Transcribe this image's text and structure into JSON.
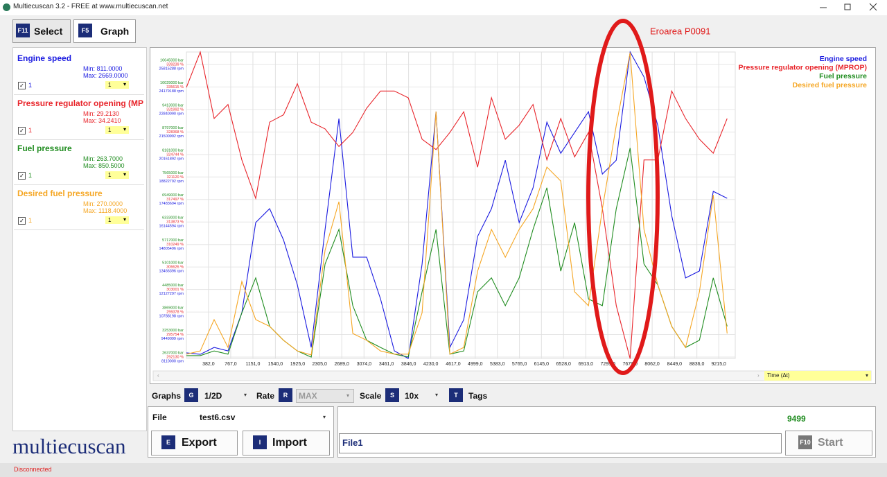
{
  "window": {
    "title": "Multiecuscan 3.2 - FREE at www.multiecuscan.net"
  },
  "tabs": [
    {
      "key": "F11",
      "label": "Select"
    },
    {
      "key": "F5",
      "label": "Graph"
    }
  ],
  "sidebar": [
    {
      "min": "Min: 811.0000",
      "max": "Max: 2669.0000",
      "checkbox": "1",
      "dropdown": "1"
    },
    {
      "min": "Min: 29.2130",
      "max": "Max: 34.2410",
      "checkbox": "1",
      "dropdown": "1"
    },
    {
      "min": "Min: 263.7000",
      "max": "Max: 850.5000",
      "checkbox": "1",
      "dropdown": "1"
    },
    {
      "min": "Min: 270.0000",
      "max": "Max: 1118.4000",
      "checkbox": "1",
      "dropdown": "1"
    }
  ],
  "chart_data": {
    "type": "line",
    "annotation": "Eroarea P0091",
    "x_axis_label": "Time (Δt)",
    "xlim": [
      0,
      9500
    ],
    "xticks": [
      {
        "value": 382,
        "label": "382,0"
      },
      {
        "value": 767,
        "label": "767,0"
      },
      {
        "value": 1151,
        "label": "1151,0"
      },
      {
        "value": 1540,
        "label": "1540,0"
      },
      {
        "value": 1925,
        "label": "1925,0"
      },
      {
        "value": 2305,
        "label": "2305,0"
      },
      {
        "value": 2689,
        "label": "2689,0"
      },
      {
        "value": 3074,
        "label": "3074,0"
      },
      {
        "value": 3461,
        "label": "3461,0"
      },
      {
        "value": 3846,
        "label": "3846,0"
      },
      {
        "value": 4230,
        "label": "4230,0"
      },
      {
        "value": 4617,
        "label": "4617,0"
      },
      {
        "value": 4999,
        "label": "4999,0"
      },
      {
        "value": 5383,
        "label": "5383,0"
      },
      {
        "value": 5765,
        "label": "5765,0"
      },
      {
        "value": 6145,
        "label": "6145,0"
      },
      {
        "value": 6528,
        "label": "6528,0"
      },
      {
        "value": 6913,
        "label": "6913,0"
      },
      {
        "value": 7295,
        "label": "7295,0"
      },
      {
        "value": 7679,
        "label": "7679,0"
      },
      {
        "value": 8062,
        "label": "8062,0"
      },
      {
        "value": 8449,
        "label": "8449,0"
      },
      {
        "value": 8836,
        "label": "8836,0"
      },
      {
        "value": 9215,
        "label": "9215,0"
      }
    ],
    "y_tick_labels": [
      [
        "10645000 bar",
        "339239 %",
        "25815288 rpm"
      ],
      [
        "10029000 bar",
        "335615 %",
        "24179188 rpm"
      ],
      [
        "9413000 bar",
        "331992 %",
        "22840090 rpm"
      ],
      [
        "8797000 bar",
        "328368 %",
        "21500992 rpm"
      ],
      [
        "8181000 bar",
        "324744 %",
        "20161892 rpm"
      ],
      [
        "7565000 bar",
        "321120 %",
        "18822792 rpm"
      ],
      [
        "6949000 bar",
        "317497 %",
        "17483694 rpm"
      ],
      [
        "6333000 bar",
        "313873 %",
        "16144594 rpm"
      ],
      [
        "5717000 bar",
        "310249 %",
        "14805496 rpm"
      ],
      [
        "5101000 bar",
        "306626 %",
        "13466396 rpm"
      ],
      [
        "4485000 bar",
        "303001 %",
        "12127297 rpm"
      ],
      [
        "3869000 bar",
        "299378 %",
        "10788198 rpm"
      ],
      [
        "3253000 bar",
        "295754 %",
        "9449099 rpm"
      ],
      [
        "2637000 bar",
        "292130 %",
        "8110000 rpm"
      ]
    ],
    "x": [
      0,
      240,
      480,
      720,
      960,
      1200,
      1440,
      1680,
      1920,
      2160,
      2400,
      2640,
      2880,
      3120,
      3360,
      3600,
      3840,
      4080,
      4320,
      4560,
      4800,
      5040,
      5280,
      5520,
      5760,
      6000,
      6240,
      6480,
      6720,
      6960,
      7200,
      7440,
      7680,
      7920,
      8160,
      8400,
      8640,
      8880,
      9120,
      9360
    ],
    "series": [
      {
        "name": "Engine speed",
        "color": "#1a1ae0",
        "ylim": [
          811,
          2669
        ],
        "values": [
          845,
          836,
          878,
          857,
          1088,
          1635,
          1719,
          1530,
          1257,
          878,
          1593,
          2265,
          1425,
          1425,
          1172,
          857,
          811,
          1383,
          2307,
          878,
          1046,
          1551,
          1719,
          2013,
          1635,
          1845,
          2244,
          2055,
          2181,
          2307,
          1929,
          2013,
          2669,
          2518,
          2223,
          1677,
          1299,
          1341,
          1824,
          1782
        ]
      },
      {
        "name": "Pressure regulator opening (MPROP)",
        "color": "#e8242a",
        "ylim": [
          29.213,
          34.241
        ],
        "values": [
          33.66,
          34.24,
          33.15,
          33.38,
          32.47,
          31.84,
          33.09,
          33.21,
          33.72,
          33.09,
          32.98,
          32.69,
          32.92,
          33.32,
          33.6,
          33.6,
          33.49,
          32.81,
          32.64,
          32.92,
          33.26,
          32.35,
          33.49,
          32.81,
          33.04,
          33.38,
          32.47,
          33.15,
          32.52,
          32.92,
          31.67,
          30.08,
          29.21,
          32.47,
          32.47,
          33.6,
          33.15,
          32.81,
          32.58,
          33.15
        ]
      },
      {
        "name": "Fuel pressure",
        "color": "#1f8c1f",
        "ylim": [
          260,
          1120
        ],
        "values": [
          268,
          268,
          281,
          272,
          388,
          486,
          350,
          311,
          281,
          263.7,
          525,
          622,
          408,
          311,
          291,
          272,
          264,
          447,
          622,
          272,
          281,
          447,
          486,
          408,
          486,
          622,
          739,
          505,
          641,
          427,
          408,
          680,
          850.5,
          525,
          466,
          350,
          291,
          311,
          486,
          350
        ]
      },
      {
        "name": "Desired fuel pressure",
        "color": "#f5a623",
        "ylim": [
          260,
          1120
        ],
        "values": [
          272,
          281,
          369,
          291,
          476,
          369,
          350,
          311,
          281,
          270,
          564,
          700,
          330,
          311,
          281,
          272,
          272,
          388,
          953,
          272,
          291,
          505,
          622,
          544,
          622,
          680,
          797,
          758,
          447,
          408,
          680,
          914,
          1118.4,
          622,
          466,
          350,
          291,
          447,
          719,
          330
        ]
      }
    ]
  },
  "controls": {
    "graphs": {
      "label": "Graphs",
      "key": "G",
      "value": "1/2D"
    },
    "rate": {
      "label": "Rate",
      "key": "R",
      "value": "MAX"
    },
    "scale": {
      "label": "Scale",
      "key": "S",
      "value": "10x"
    },
    "tags": {
      "label": "Tags",
      "key": "T"
    }
  },
  "file": {
    "label": "File",
    "name": "test6.csv",
    "export": {
      "key": "E",
      "label": "Export"
    },
    "import": {
      "key": "I",
      "label": "Import"
    }
  },
  "counter": 9499,
  "log_name": "File1",
  "start": {
    "key": "F10",
    "label": "Start"
  },
  "logo": "multiecuscan",
  "status": "Disconnected"
}
